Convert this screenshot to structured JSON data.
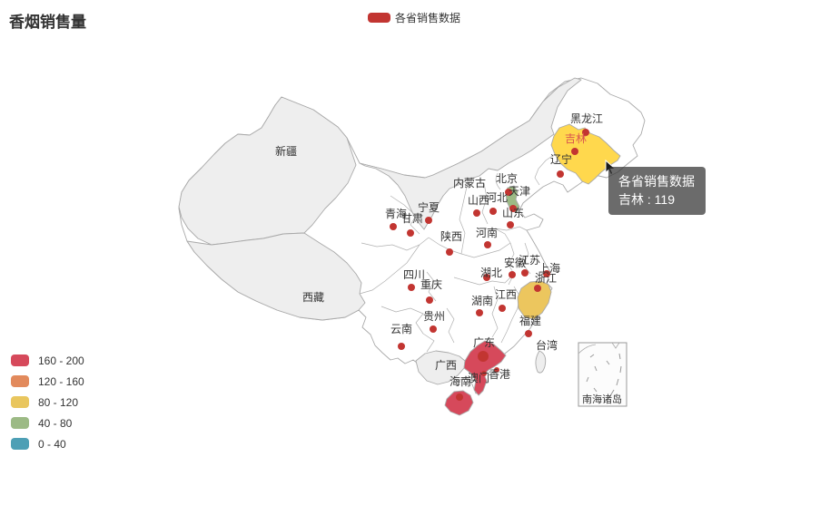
{
  "title": "香烟销售量",
  "series_legend": {
    "label": "各省销售数据",
    "swatch_color": "#c23531"
  },
  "tooltip": {
    "line1": "各省销售数据",
    "line2": "吉林 : 119"
  },
  "inset": {
    "label": "南海诸岛"
  },
  "visualmap": {
    "pieces": [
      {
        "label": "160 - 200",
        "color": "#d6495b"
      },
      {
        "label": "120 - 160",
        "color": "#e28a5c"
      },
      {
        "label": "80 - 120",
        "color": "#e9c65e"
      },
      {
        "label": "40 - 80",
        "color": "#9cba85"
      },
      {
        "label": "0 - 40",
        "color": "#4d9fb5"
      }
    ]
  },
  "chart_data": {
    "type": "map",
    "title": "香烟销售量",
    "series_name": "各省销售数据",
    "legend_position": "top-center",
    "visualmap_position": "bottom-left",
    "visualmap_pieces": [
      "160 - 200",
      "120 - 160",
      "80 - 120",
      "40 - 80",
      "0 - 40"
    ],
    "hovered_region": {
      "name": "吉林",
      "value": 119
    },
    "colored_regions": [
      {
        "name": "吉林",
        "range": "80 - 120",
        "state": "hover-highlight"
      },
      {
        "name": "浙江",
        "range": "80 - 120"
      },
      {
        "name": "广东",
        "range": "160 - 200"
      },
      {
        "name": "海南",
        "range": "160 - 200"
      },
      {
        "name": "天津",
        "range": "40 - 80"
      }
    ],
    "no_data_regions": [
      "新疆",
      "西藏",
      "内蒙古",
      "广西",
      "台湾"
    ]
  },
  "map": {
    "background": "#ffffff",
    "border_color": "#a9a9a9",
    "no_data_fill": "#eeeeee",
    "dot_color": "#c23531",
    "label_color": "#333333",
    "regions": {
      "mainland": "#ffffff",
      "xinjiang": "#eeeeee",
      "xizang": "#eeeeee",
      "neimenggu": "#eeeeee",
      "guangxi": "#eeeeee",
      "taiwan": "#eeeeee",
      "jilin": "#ffd84d",
      "zhejiang": "#ecc65e",
      "guangdong": "#d6495b",
      "hainan": "#d6495b",
      "tianjin": "#9cba85",
      "inset_box": "#fcfcfc"
    },
    "provinces": [
      {
        "id": "heilongjiang",
        "name": "黑龙江",
        "label": [
          646,
          135
        ],
        "dot": [
          645,
          146,
          4
        ]
      },
      {
        "id": "jilin",
        "name": "吉林",
        "label": [
          634,
          157
        ],
        "dot": [
          633,
          167,
          4
        ],
        "label_color": "#d9534f"
      },
      {
        "id": "liaoning",
        "name": "辽宁",
        "label": [
          618,
          180
        ],
        "dot": [
          617,
          192,
          4
        ]
      },
      {
        "id": "neimenggu",
        "name": "内蒙古",
        "label": [
          517,
          206
        ],
        "dot": null
      },
      {
        "id": "beijing",
        "name": "北京",
        "label": [
          558,
          201
        ],
        "dot": [
          560,
          212,
          4
        ]
      },
      {
        "id": "tianjin",
        "name": "天津",
        "label": [
          572,
          215
        ],
        "dot": [
          565,
          230,
          4
        ]
      },
      {
        "id": "hebei",
        "name": "河北",
        "label": [
          547,
          222
        ],
        "dot": [
          543,
          233,
          4
        ]
      },
      {
        "id": "shanxi",
        "name": "山西",
        "label": [
          527,
          225
        ],
        "dot": [
          525,
          235,
          4
        ]
      },
      {
        "id": "shandong",
        "name": "山东",
        "label": [
          565,
          239
        ],
        "dot": [
          562,
          248,
          4
        ]
      },
      {
        "id": "henan",
        "name": "河南",
        "label": [
          536,
          261
        ],
        "dot": [
          537,
          270,
          4
        ]
      },
      {
        "id": "ningxia",
        "name": "宁夏",
        "label": [
          472,
          233
        ],
        "dot": [
          472,
          243,
          4
        ]
      },
      {
        "id": "qinghai",
        "name": "青海",
        "label": [
          436,
          240
        ],
        "dot": [
          433,
          250,
          4
        ]
      },
      {
        "id": "gansu",
        "name": "甘肃",
        "label": [
          454,
          245
        ],
        "dot": [
          452,
          257,
          4
        ]
      },
      {
        "id": "shaanxi",
        "name": "陕西",
        "label": [
          497,
          265
        ],
        "dot": [
          495,
          278,
          4
        ]
      },
      {
        "id": "xinjiang",
        "name": "新疆",
        "label": [
          315,
          171
        ],
        "dot": null
      },
      {
        "id": "xizang",
        "name": "西藏",
        "label": [
          345,
          332
        ],
        "dot": null
      },
      {
        "id": "sichuan",
        "name": "四川",
        "label": [
          456,
          307
        ],
        "dot": [
          453,
          317,
          4
        ]
      },
      {
        "id": "chongqing",
        "name": "重庆",
        "label": [
          475,
          318
        ],
        "dot": [
          473,
          331,
          4
        ]
      },
      {
        "id": "hubei",
        "name": "湖北",
        "label": [
          541,
          305
        ],
        "dot": [
          536,
          306,
          4
        ]
      },
      {
        "id": "anhui",
        "name": "安徽",
        "label": [
          567,
          294
        ],
        "dot": [
          564,
          303,
          4
        ]
      },
      {
        "id": "jiangsu",
        "name": "江苏",
        "label": [
          583,
          291
        ],
        "dot": [
          578,
          301,
          4
        ]
      },
      {
        "id": "shanghai",
        "name": "上海",
        "label": [
          605,
          300
        ],
        "dot": [
          602,
          302,
          4
        ]
      },
      {
        "id": "zhejiang",
        "name": "浙江",
        "label": [
          601,
          311
        ],
        "dot": [
          592,
          318,
          4
        ]
      },
      {
        "id": "hunan",
        "name": "湖南",
        "label": [
          531,
          336
        ],
        "dot": [
          528,
          345,
          4
        ]
      },
      {
        "id": "jiangxi",
        "name": "江西",
        "label": [
          557,
          329
        ],
        "dot": [
          553,
          340,
          4
        ]
      },
      {
        "id": "fujian",
        "name": "福建",
        "label": [
          584,
          358
        ],
        "dot": [
          582,
          368,
          4
        ]
      },
      {
        "id": "guizhou",
        "name": "贵州",
        "label": [
          478,
          353
        ],
        "dot": [
          477,
          363,
          4
        ]
      },
      {
        "id": "yunnan",
        "name": "云南",
        "label": [
          442,
          367
        ],
        "dot": [
          442,
          382,
          4
        ]
      },
      {
        "id": "guangxi",
        "name": "广西",
        "label": [
          491,
          407
        ],
        "dot": null
      },
      {
        "id": "guangdong",
        "name": "广东",
        "label": [
          533,
          382
        ],
        "dot": [
          532,
          393,
          6
        ]
      },
      {
        "id": "hainan",
        "name": "海南",
        "label": [
          507,
          425
        ],
        "dot": [
          506,
          438,
          4
        ]
      },
      {
        "id": "aomen",
        "name": "澳门",
        "label": [
          527,
          421
        ],
        "dot": [
          533,
          412,
          3
        ]
      },
      {
        "id": "xianggang",
        "name": "香港",
        "label": [
          550,
          417
        ],
        "dot": [
          547,
          408,
          3
        ]
      },
      {
        "id": "taiwan",
        "name": "台湾",
        "label": [
          602,
          385
        ],
        "dot": null
      }
    ]
  }
}
